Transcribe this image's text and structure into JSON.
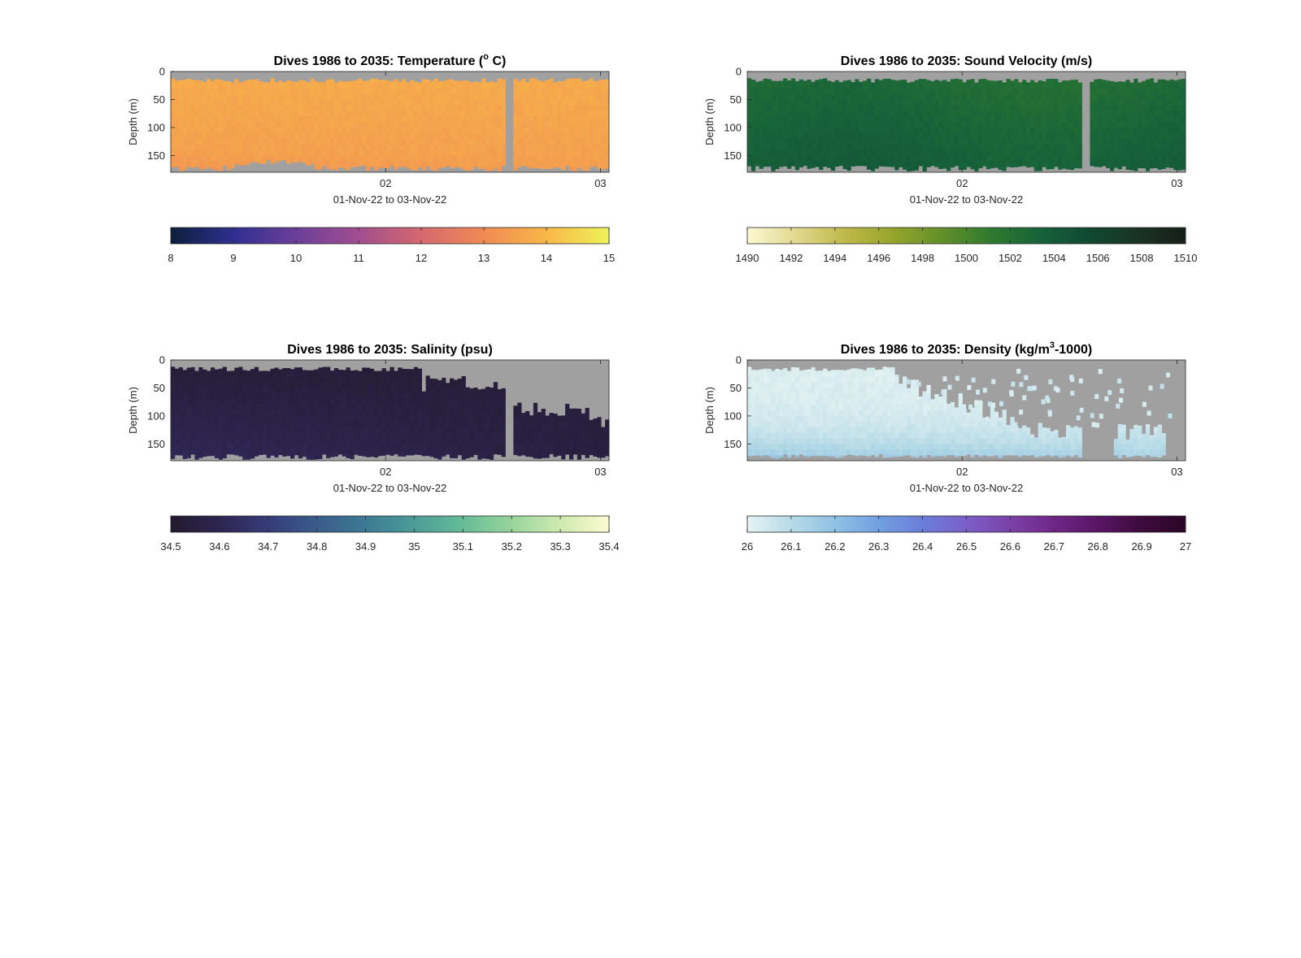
{
  "chart_data": [
    {
      "type": "heatmap",
      "id": "temp",
      "title": "Dives 1986 to 2035: Temperature (",
      "title_sup": "o",
      "title_post": " C)",
      "ylabel": "Depth (m)",
      "xlabel": "01-Nov-22 to 03-Nov-22",
      "xticks": [
        {
          "value": 2,
          "label": "02"
        },
        {
          "value": 3,
          "label": "03"
        }
      ],
      "xlim": [
        1.0,
        3.04
      ],
      "ylim": [
        0,
        180
      ],
      "yticks": [
        0,
        50,
        100,
        150
      ],
      "colorbar": {
        "min": 8,
        "max": 15,
        "ticks": [
          "8",
          "9",
          "10",
          "11",
          "12",
          "13",
          "14",
          "15"
        ],
        "colors": [
          "#0c1f3c",
          "#2f2f8f",
          "#6b3f9a",
          "#a14e8e",
          "#d5686f",
          "#f08a55",
          "#f8b748",
          "#eef35a"
        ]
      },
      "gap": {
        "start": 2.55,
        "end": 2.59
      },
      "approx_value_range": [
        13.0,
        13.8
      ]
    },
    {
      "type": "heatmap",
      "id": "sv",
      "title": "Dives 1986 to 2035: Sound Velocity (m/s)",
      "ylabel": "Depth (m)",
      "xlabel": "01-Nov-22 to 03-Nov-22",
      "xticks": [
        {
          "value": 2,
          "label": "02"
        },
        {
          "value": 3,
          "label": "03"
        }
      ],
      "xlim": [
        1.0,
        3.04
      ],
      "ylim": [
        0,
        180
      ],
      "yticks": [
        0,
        50,
        100,
        150
      ],
      "colorbar": {
        "min": 1490,
        "max": 1510,
        "ticks": [
          "1490",
          "1492",
          "1494",
          "1496",
          "1498",
          "1500",
          "1502",
          "1504",
          "1506",
          "1508",
          "1510"
        ],
        "colors": [
          "#fbf8d3",
          "#e1d98f",
          "#c0b94a",
          "#96a52a",
          "#62902a",
          "#2f7a2f",
          "#17633a",
          "#104a33",
          "#1a3325",
          "#151f19"
        ]
      },
      "gap": {
        "start": 2.55,
        "end": 2.59
      },
      "approx_value_range": [
        1502,
        1503.5
      ]
    },
    {
      "type": "heatmap",
      "id": "sal",
      "title": "Dives 1986 to 2035: Salinity (psu)",
      "ylabel": "Depth (m)",
      "xlabel": "01-Nov-22 to 03-Nov-22",
      "xticks": [
        {
          "value": 2,
          "label": "02"
        },
        {
          "value": 3,
          "label": "03"
        }
      ],
      "xlim": [
        1.0,
        3.04
      ],
      "ylim": [
        0,
        180
      ],
      "yticks": [
        0,
        50,
        100,
        150
      ],
      "colorbar": {
        "min": 34.5,
        "max": 35.4,
        "ticks": [
          "34.5",
          "34.6",
          "34.7",
          "34.8",
          "34.9",
          "35",
          "35.1",
          "35.2",
          "35.3",
          "35.4"
        ],
        "colors": [
          "#231a2e",
          "#2e2550",
          "#363c78",
          "#3b5b8c",
          "#3d7b94",
          "#4c9c98",
          "#66bb98",
          "#98d59c",
          "#cfeab0",
          "#fdfbd2"
        ]
      },
      "gap": {
        "start": 2.55,
        "end": 2.59
      },
      "approx_value_range": [
        34.5,
        34.7
      ]
    },
    {
      "type": "heatmap",
      "id": "den",
      "title": "Dives 1986 to 2035: Density (kg/m",
      "title_sup": "3",
      "title_post": "-1000)",
      "ylabel": "Depth (m)",
      "xlabel": "01-Nov-22 to 03-Nov-22",
      "xticks": [
        {
          "value": 2,
          "label": "02"
        },
        {
          "value": 3,
          "label": "03"
        }
      ],
      "xlim": [
        1.0,
        3.04
      ],
      "ylim": [
        0,
        180
      ],
      "yticks": [
        0,
        50,
        100,
        150
      ],
      "colorbar": {
        "min": 26,
        "max": 27,
        "ticks": [
          "26",
          "26.1",
          "26.2",
          "26.3",
          "26.4",
          "26.5",
          "26.6",
          "26.7",
          "26.8",
          "26.9",
          "27"
        ],
        "colors": [
          "#e6f3f3",
          "#b7dbe7",
          "#8fc2e4",
          "#729fe0",
          "#6b7ed9",
          "#7c5fc8",
          "#7b42a8",
          "#6f2787",
          "#5a1565",
          "#3e0b3d",
          "#2a0527"
        ]
      },
      "gap": {
        "start": 2.55,
        "end": 2.59
      },
      "approx_value_range": [
        26.0,
        26.3
      ]
    }
  ]
}
